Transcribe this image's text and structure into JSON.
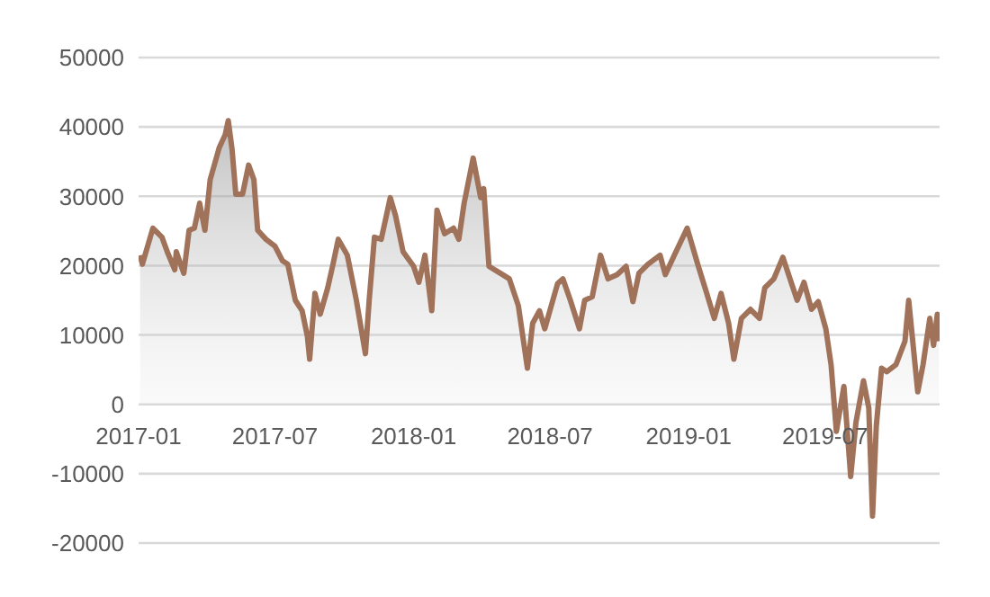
{
  "chart_data": {
    "type": "area",
    "xlim": [
      "2017-01-01",
      "2019-11-30"
    ],
    "xticks": [
      "2017-01",
      "2017-07",
      "2018-01",
      "2018-07",
      "2019-01",
      "2019-07"
    ],
    "ylim": [
      -20000,
      50000
    ],
    "yticks": [
      -20000,
      -10000,
      0,
      10000,
      20000,
      30000,
      40000,
      50000
    ],
    "grid": "y",
    "x": [
      "2017-01-03",
      "2017-01-06",
      "2017-01-20",
      "2017-02-01",
      "2017-02-08",
      "2017-02-18",
      "2017-02-20",
      "2017-03-02",
      "2017-03-09",
      "2017-03-16",
      "2017-03-23",
      "2017-03-30",
      "2017-04-06",
      "2017-04-18",
      "2017-04-26",
      "2017-04-30",
      "2017-05-05",
      "2017-05-10",
      "2017-05-19",
      "2017-05-27",
      "2017-06-03",
      "2017-06-08",
      "2017-06-19",
      "2017-07-01",
      "2017-07-11",
      "2017-07-18",
      "2017-07-28",
      "2017-08-06",
      "2017-08-13",
      "2017-08-16",
      "2017-08-23",
      "2017-08-30",
      "2017-09-09",
      "2017-09-16",
      "2017-09-23",
      "2017-10-05",
      "2017-10-17",
      "2017-10-29",
      "2017-11-03",
      "2017-11-10",
      "2017-11-19",
      "2017-12-01",
      "2017-12-08",
      "2017-12-18",
      "2018-01-01",
      "2018-01-08",
      "2018-01-16",
      "2018-01-25",
      "2018-02-01",
      "2018-02-11",
      "2018-02-23",
      "2018-03-02",
      "2018-03-09",
      "2018-03-21",
      "2018-03-31",
      "2018-04-04",
      "2018-04-11",
      "2018-04-26",
      "2018-05-08",
      "2018-05-20",
      "2018-06-01",
      "2018-06-08",
      "2018-06-17",
      "2018-06-24",
      "2018-07-11",
      "2018-07-18",
      "2018-07-28",
      "2018-08-09",
      "2018-08-16",
      "2018-08-26",
      "2018-09-06",
      "2018-09-16",
      "2018-09-28",
      "2018-10-10",
      "2018-10-19",
      "2018-10-27",
      "2018-11-08",
      "2018-11-24",
      "2018-12-01",
      "2018-12-13",
      "2018-12-30",
      "2019-01-13",
      "2019-01-25",
      "2019-02-04",
      "2019-02-13",
      "2019-02-23",
      "2019-03-02",
      "2019-03-12",
      "2019-03-24",
      "2019-04-05",
      "2019-04-12",
      "2019-04-24",
      "2019-05-06",
      "2019-05-17",
      "2019-05-25",
      "2019-06-03",
      "2019-06-13",
      "2019-06-22",
      "2019-07-02",
      "2019-07-09",
      "2019-07-16",
      "2019-07-26",
      "2019-08-04",
      "2019-08-11",
      "2019-08-21",
      "2019-08-28",
      "2019-09-02",
      "2019-09-07",
      "2019-09-14",
      "2019-09-21",
      "2019-10-03",
      "2019-10-15",
      "2019-10-20",
      "2019-10-27",
      "2019-11-01",
      "2019-11-08",
      "2019-11-17",
      "2019-11-22",
      "2019-11-27",
      "2019-11-29"
    ],
    "series": [
      {
        "color": "#a0725a",
        "values": [
          21500,
          20200,
          25400,
          24100,
          22000,
          19400,
          22000,
          18900,
          25100,
          25400,
          29000,
          25100,
          32400,
          37000,
          38900,
          40900,
          36800,
          30300,
          30300,
          34500,
          32400,
          25100,
          23800,
          22800,
          20700,
          20200,
          15000,
          13500,
          9800,
          6500,
          16000,
          13000,
          16800,
          20200,
          23800,
          21500,
          15000,
          7300,
          15000,
          24100,
          23800,
          29800,
          27200,
          22000,
          19900,
          17600,
          21500,
          13500,
          28000,
          24600,
          25400,
          23800,
          29000,
          35500,
          29800,
          31100,
          19900,
          18900,
          18100,
          14200,
          5200,
          11700,
          13500,
          10900,
          17400,
          18100,
          15000,
          10900,
          15000,
          15500,
          21500,
          18100,
          18700,
          19900,
          14800,
          18900,
          20200,
          21500,
          18700,
          21500,
          25400,
          20200,
          16000,
          12400,
          16000,
          11700,
          6500,
          12400,
          13700,
          12400,
          16800,
          18100,
          21200,
          17600,
          15000,
          17600,
          13700,
          14800,
          10900,
          5700,
          -3900,
          2600,
          -10400,
          -2600,
          3400,
          -500,
          -16100,
          -3100,
          5200,
          4700,
          5700,
          9100,
          15000,
          7300,
          1800,
          5700,
          12400,
          8500,
          13000,
          9100
        ]
      }
    ]
  }
}
